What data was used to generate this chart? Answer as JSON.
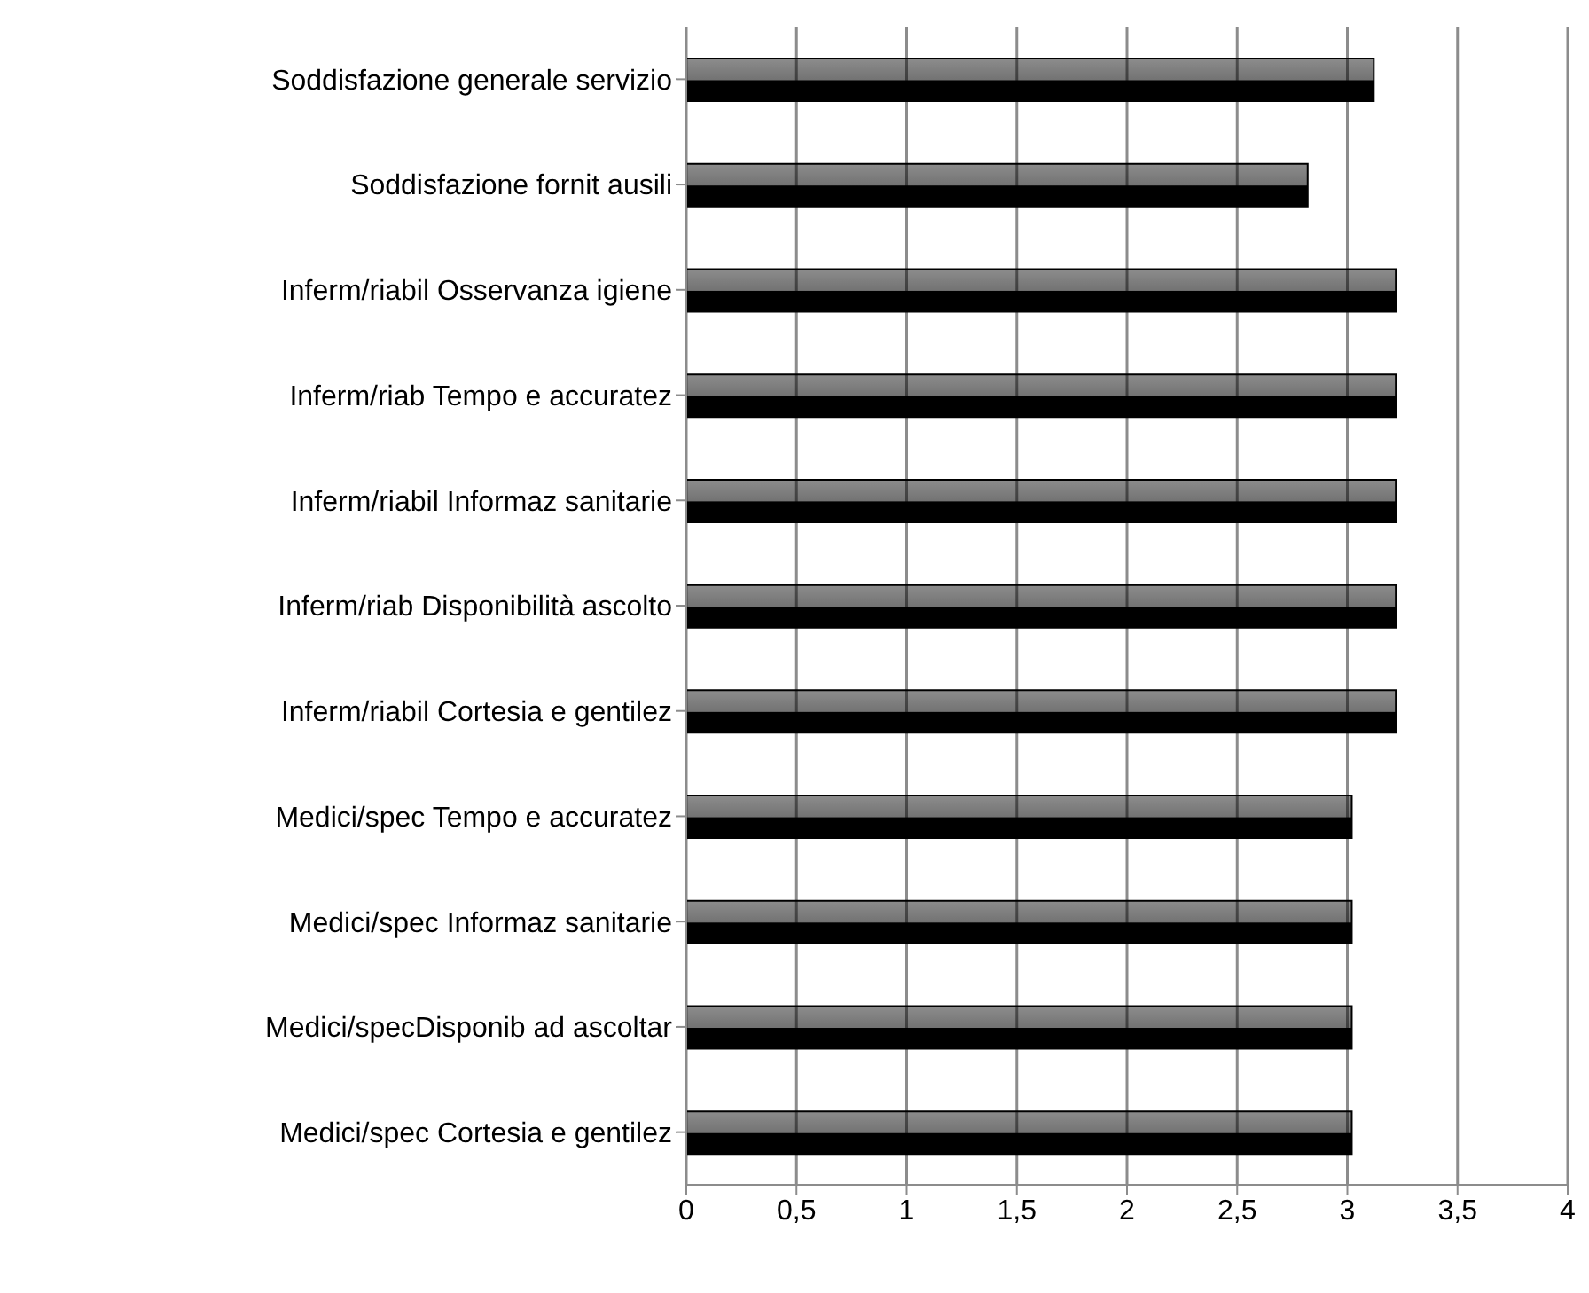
{
  "chart_data": {
    "type": "bar",
    "orientation": "horizontal",
    "categories": [
      "Soddisfazione generale servizio",
      "Soddisfazione fornit ausili",
      "Inferm/riabil Osservanza igiene",
      "Inferm/riab Tempo e accuratez",
      "Inferm/riabil Informaz sanitarie",
      "Inferm/riab Disponibilità ascolto",
      "Inferm/riabil  Cortesia e gentilez",
      "Medici/spec  Tempo e accuratez",
      "Medici/spec Informaz sanitarie",
      "Medici/specDisponib ad ascoltar",
      "Medici/spec Cortesia e gentilez"
    ],
    "values": [
      3.12,
      2.82,
      3.22,
      3.22,
      3.22,
      3.22,
      3.22,
      3.02,
      3.02,
      3.02,
      3.02
    ],
    "color": "#000000",
    "xlim": [
      0,
      4
    ],
    "xticks": [
      {
        "value": 0,
        "label": "0"
      },
      {
        "value": 0.5,
        "label": "0,5"
      },
      {
        "value": 1,
        "label": "1"
      },
      {
        "value": 1.5,
        "label": "1,5"
      },
      {
        "value": 2,
        "label": "2"
      },
      {
        "value": 2.5,
        "label": "2,5"
      },
      {
        "value": 3,
        "label": "3"
      },
      {
        "value": 3.5,
        "label": "3,5"
      },
      {
        "value": 4,
        "label": "4"
      }
    ],
    "grid": "x",
    "legend": false
  }
}
